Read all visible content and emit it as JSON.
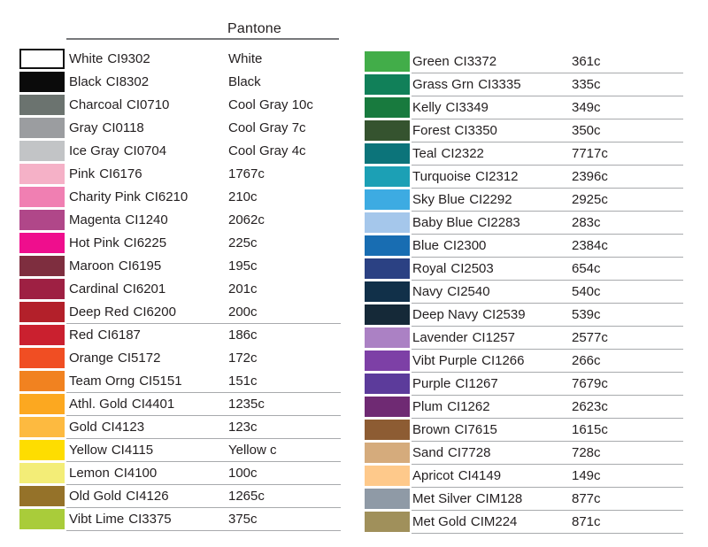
{
  "header": {
    "title": "Pantone"
  },
  "columns": {
    "left": {
      "rows": [
        {
          "name": "White",
          "code": "CI9302",
          "pantone": "White",
          "color": "#ffffff",
          "underline": false
        },
        {
          "name": "Black",
          "code": "CI8302",
          "pantone": "Black",
          "color": "#0b0b0b",
          "underline": false
        },
        {
          "name": "Charcoal",
          "code": "CI0710",
          "pantone": "Cool Gray 10c",
          "color": "#6b736f",
          "underline": false
        },
        {
          "name": "Gray",
          "code": "CI0118",
          "pantone": "Cool Gray 7c",
          "color": "#9b9da0",
          "underline": false
        },
        {
          "name": "Ice Gray",
          "code": "CI0704",
          "pantone": "Cool Gray 4c",
          "color": "#c2c4c6",
          "underline": false
        },
        {
          "name": "Pink",
          "code": "CI6176",
          "pantone": "1767c",
          "color": "#f5b1c7",
          "underline": false
        },
        {
          "name": "Charity Pink",
          "code": "CI6210",
          "pantone": "210c",
          "color": "#f07fb2",
          "underline": false
        },
        {
          "name": "Magenta",
          "code": "CI1240",
          "pantone": "2062c",
          "color": "#b04789",
          "underline": false
        },
        {
          "name": "Hot Pink",
          "code": "CI6225",
          "pantone": "225c",
          "color": "#ef0e8d",
          "underline": false
        },
        {
          "name": "Maroon",
          "code": "CI6195",
          "pantone": "195c",
          "color": "#7e2e3f",
          "underline": false
        },
        {
          "name": "Cardinal",
          "code": "CI6201",
          "pantone": "201c",
          "color": "#9e2043",
          "underline": false
        },
        {
          "name": "Deep Red",
          "code": "CI6200",
          "pantone": "200c",
          "color": "#b3202a",
          "underline": true
        },
        {
          "name": "Red",
          "code": "CI6187",
          "pantone": "186c",
          "color": "#ca202f",
          "underline": false
        },
        {
          "name": "Orange",
          "code": "CI5172",
          "pantone": "172c",
          "color": "#f04e23",
          "underline": false
        },
        {
          "name": "Team Orng",
          "code": "CI5151",
          "pantone": "151c",
          "color": "#f18220",
          "underline": true
        },
        {
          "name": "Athl. Gold",
          "code": "CI4401",
          "pantone": "1235c",
          "color": "#fca820",
          "underline": true
        },
        {
          "name": "Gold",
          "code": "CI4123",
          "pantone": "123c",
          "color": "#fdba40",
          "underline": true
        },
        {
          "name": "Yellow",
          "code": "CI4115",
          "pantone": "Yellow c",
          "color": "#fedd00",
          "underline": true
        },
        {
          "name": "Lemon",
          "code": "CI4100",
          "pantone": "100c",
          "color": "#f3ed77",
          "underline": true
        },
        {
          "name": "Old Gold",
          "code": "CI4126",
          "pantone": "1265c",
          "color": "#957229",
          "underline": true
        },
        {
          "name": "Vibt Lime",
          "code": "CI3375",
          "pantone": "375c",
          "color": "#a9cc3a",
          "underline": true
        }
      ]
    },
    "right": {
      "rows": [
        {
          "name": "Green",
          "code": "CI3372",
          "pantone": "361c",
          "color": "#42ad49",
          "underline": true
        },
        {
          "name": "Grass Grn",
          "code": "CI3335",
          "pantone": "335c",
          "color": "#118059",
          "underline": true
        },
        {
          "name": "Kelly",
          "code": "CI3349",
          "pantone": "349c",
          "color": "#187a3e",
          "underline": true
        },
        {
          "name": "Forest",
          "code": "CI3350",
          "pantone": "350c",
          "color": "#35532f",
          "underline": true
        },
        {
          "name": "Teal",
          "code": "CI2322",
          "pantone": "7717c",
          "color": "#0c747a",
          "underline": true
        },
        {
          "name": "Turquoise",
          "code": "CI2312",
          "pantone": "2396c",
          "color": "#1ca0b5",
          "underline": true
        },
        {
          "name": "Sky Blue",
          "code": "CI2292",
          "pantone": "2925c",
          "color": "#3dabe2",
          "underline": true
        },
        {
          "name": "Baby Blue",
          "code": "CI2283",
          "pantone": "283c",
          "color": "#a5c7eb",
          "underline": true
        },
        {
          "name": "Blue",
          "code": "CI2300",
          "pantone": "2384c",
          "color": "#186db2",
          "underline": true
        },
        {
          "name": "Royal",
          "code": "CI2503",
          "pantone": "654c",
          "color": "#2b4183",
          "underline": true
        },
        {
          "name": "Navy",
          "code": "CI2540",
          "pantone": "540c",
          "color": "#113049",
          "underline": true
        },
        {
          "name": "Deep Navy",
          "code": "CI2539",
          "pantone": "539c",
          "color": "#152938",
          "underline": true
        },
        {
          "name": "Lavender",
          "code": "CI1257",
          "pantone": "2577c",
          "color": "#ab81c4",
          "underline": true
        },
        {
          "name": "Vibt Purple",
          "code": "CI1266",
          "pantone": "266c",
          "color": "#7d40a6",
          "underline": true
        },
        {
          "name": "Purple",
          "code": "CI1267",
          "pantone": "7679c",
          "color": "#5c3b9b",
          "underline": true
        },
        {
          "name": "Plum",
          "code": "CI1262",
          "pantone": "2623c",
          "color": "#6f2a73",
          "underline": true
        },
        {
          "name": "Brown",
          "code": "CI7615",
          "pantone": "1615c",
          "color": "#8d5c33",
          "underline": true
        },
        {
          "name": "Sand",
          "code": "CI7728",
          "pantone": "728c",
          "color": "#d5ab7c",
          "underline": true
        },
        {
          "name": "Apricot",
          "code": "CI4149",
          "pantone": "149c",
          "color": "#fec98b",
          "underline": true
        },
        {
          "name": "Met Silver",
          "code": "CIM128",
          "pantone": "877c",
          "color": "#8f9aa6",
          "underline": true
        },
        {
          "name": "Met Gold",
          "code": "CIM224",
          "pantone": "871c",
          "color": "#a0905b",
          "underline": true
        }
      ]
    }
  }
}
